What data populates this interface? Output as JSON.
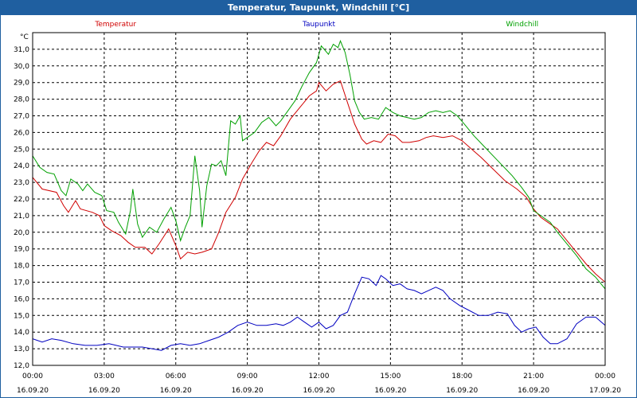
{
  "window": {
    "title": "Temperatur, Taupunkt, Windchill [°C]"
  },
  "chart_data": {
    "type": "line",
    "ylabel": "°C",
    "ylim": [
      12.0,
      32.0
    ],
    "y_ticks": [
      "12,0",
      "13,0",
      "14,0",
      "15,0",
      "16,0",
      "17,0",
      "18,0",
      "19,0",
      "20,0",
      "21,0",
      "22,0",
      "23,0",
      "24,0",
      "25,0",
      "26,0",
      "27,0",
      "28,0",
      "29,0",
      "30,0",
      "31,0"
    ],
    "x_unit": "hours",
    "xlim": [
      0,
      24
    ],
    "x_ticks": [
      {
        "time": "00:00",
        "date": "16.09.20"
      },
      {
        "time": "03:00",
        "date": "16.09.20"
      },
      {
        "time": "06:00",
        "date": "16.09.20"
      },
      {
        "time": "09:00",
        "date": "16.09.20"
      },
      {
        "time": "12:00",
        "date": "16.09.20"
      },
      {
        "time": "15:00",
        "date": "16.09.20"
      },
      {
        "time": "18:00",
        "date": "16.09.20"
      },
      {
        "time": "21:00",
        "date": "16.09.20"
      },
      {
        "time": "00:00",
        "date": "17.09.20"
      }
    ],
    "grid": true,
    "legend": "top",
    "series": [
      {
        "name": "Temperatur",
        "color": "#d00000",
        "points": [
          [
            0,
            23.3
          ],
          [
            0.4,
            22.6
          ],
          [
            1.0,
            22.4
          ],
          [
            1.3,
            21.6
          ],
          [
            1.5,
            21.2
          ],
          [
            1.8,
            21.9
          ],
          [
            2.0,
            21.4
          ],
          [
            2.5,
            21.2
          ],
          [
            2.8,
            21.0
          ],
          [
            3.0,
            20.4
          ],
          [
            3.3,
            20.1
          ],
          [
            3.7,
            19.8
          ],
          [
            4.0,
            19.4
          ],
          [
            4.3,
            19.1
          ],
          [
            4.7,
            19.1
          ],
          [
            5.0,
            18.7
          ],
          [
            5.3,
            19.3
          ],
          [
            5.7,
            20.2
          ],
          [
            6.0,
            19.2
          ],
          [
            6.2,
            18.4
          ],
          [
            6.5,
            18.8
          ],
          [
            6.8,
            18.7
          ],
          [
            7.1,
            18.8
          ],
          [
            7.5,
            19.0
          ],
          [
            7.8,
            20.0
          ],
          [
            8.1,
            21.2
          ],
          [
            8.5,
            22.1
          ],
          [
            8.8,
            23.2
          ],
          [
            9.2,
            24.2
          ],
          [
            9.5,
            24.9
          ],
          [
            9.8,
            25.4
          ],
          [
            10.1,
            25.2
          ],
          [
            10.4,
            25.8
          ],
          [
            10.8,
            26.8
          ],
          [
            11.2,
            27.5
          ],
          [
            11.6,
            28.2
          ],
          [
            11.9,
            28.5
          ],
          [
            12.0,
            29.0
          ],
          [
            12.3,
            28.5
          ],
          [
            12.6,
            28.9
          ],
          [
            12.9,
            29.1
          ],
          [
            13.2,
            27.8
          ],
          [
            13.5,
            26.5
          ],
          [
            13.8,
            25.6
          ],
          [
            14.0,
            25.3
          ],
          [
            14.3,
            25.5
          ],
          [
            14.6,
            25.4
          ],
          [
            14.9,
            25.9
          ],
          [
            15.2,
            25.8
          ],
          [
            15.5,
            25.4
          ],
          [
            15.8,
            25.4
          ],
          [
            16.2,
            25.5
          ],
          [
            16.5,
            25.7
          ],
          [
            16.8,
            25.8
          ],
          [
            17.2,
            25.7
          ],
          [
            17.6,
            25.8
          ],
          [
            18.0,
            25.5
          ],
          [
            18.4,
            25.0
          ],
          [
            18.8,
            24.5
          ],
          [
            19.3,
            23.8
          ],
          [
            19.8,
            23.1
          ],
          [
            20.3,
            22.6
          ],
          [
            20.7,
            22.1
          ],
          [
            21.0,
            21.4
          ],
          [
            21.3,
            20.9
          ],
          [
            21.6,
            20.6
          ],
          [
            22.0,
            20.2
          ],
          [
            22.4,
            19.5
          ],
          [
            22.8,
            18.8
          ],
          [
            23.2,
            18.1
          ],
          [
            23.6,
            17.5
          ],
          [
            24.0,
            17.0
          ]
        ]
      },
      {
        "name": "Taupunkt",
        "color": "#0000c0",
        "points": [
          [
            0,
            13.6
          ],
          [
            0.4,
            13.4
          ],
          [
            0.8,
            13.6
          ],
          [
            1.2,
            13.5
          ],
          [
            1.7,
            13.3
          ],
          [
            2.2,
            13.2
          ],
          [
            2.7,
            13.2
          ],
          [
            3.2,
            13.3
          ],
          [
            3.5,
            13.2
          ],
          [
            3.8,
            13.1
          ],
          [
            4.2,
            13.1
          ],
          [
            4.6,
            13.1
          ],
          [
            5.0,
            13.0
          ],
          [
            5.4,
            12.9
          ],
          [
            5.8,
            13.2
          ],
          [
            6.2,
            13.3
          ],
          [
            6.6,
            13.2
          ],
          [
            7.0,
            13.3
          ],
          [
            7.4,
            13.5
          ],
          [
            7.8,
            13.7
          ],
          [
            8.2,
            14.0
          ],
          [
            8.6,
            14.4
          ],
          [
            9.0,
            14.6
          ],
          [
            9.4,
            14.4
          ],
          [
            9.8,
            14.4
          ],
          [
            10.2,
            14.5
          ],
          [
            10.5,
            14.4
          ],
          [
            10.8,
            14.6
          ],
          [
            11.1,
            14.9
          ],
          [
            11.4,
            14.6
          ],
          [
            11.7,
            14.3
          ],
          [
            12.0,
            14.6
          ],
          [
            12.3,
            14.2
          ],
          [
            12.6,
            14.4
          ],
          [
            12.9,
            15.0
          ],
          [
            13.2,
            15.2
          ],
          [
            13.5,
            16.3
          ],
          [
            13.8,
            17.3
          ],
          [
            14.1,
            17.2
          ],
          [
            14.4,
            16.8
          ],
          [
            14.6,
            17.4
          ],
          [
            14.8,
            17.2
          ],
          [
            15.1,
            16.8
          ],
          [
            15.4,
            16.9
          ],
          [
            15.7,
            16.6
          ],
          [
            16.0,
            16.5
          ],
          [
            16.3,
            16.3
          ],
          [
            16.6,
            16.5
          ],
          [
            16.9,
            16.7
          ],
          [
            17.2,
            16.5
          ],
          [
            17.5,
            16.0
          ],
          [
            17.9,
            15.6
          ],
          [
            18.3,
            15.3
          ],
          [
            18.7,
            15.0
          ],
          [
            19.1,
            15.0
          ],
          [
            19.5,
            15.2
          ],
          [
            19.9,
            15.1
          ],
          [
            20.2,
            14.4
          ],
          [
            20.5,
            14.0
          ],
          [
            20.8,
            14.2
          ],
          [
            21.1,
            14.3
          ],
          [
            21.4,
            13.7
          ],
          [
            21.7,
            13.3
          ],
          [
            22.0,
            13.3
          ],
          [
            22.4,
            13.6
          ],
          [
            22.8,
            14.5
          ],
          [
            23.2,
            14.9
          ],
          [
            23.6,
            14.9
          ],
          [
            24.0,
            14.4
          ]
        ]
      },
      {
        "name": "Windchill",
        "color": "#00a000",
        "points": [
          [
            0,
            24.6
          ],
          [
            0.3,
            23.9
          ],
          [
            0.6,
            23.6
          ],
          [
            0.9,
            23.5
          ],
          [
            1.2,
            22.5
          ],
          [
            1.4,
            22.2
          ],
          [
            1.6,
            23.2
          ],
          [
            1.9,
            22.9
          ],
          [
            2.1,
            22.5
          ],
          [
            2.3,
            22.9
          ],
          [
            2.6,
            22.4
          ],
          [
            2.9,
            22.2
          ],
          [
            3.1,
            21.3
          ],
          [
            3.4,
            21.2
          ],
          [
            3.6,
            20.6
          ],
          [
            3.9,
            19.9
          ],
          [
            4.1,
            21.3
          ],
          [
            4.2,
            22.6
          ],
          [
            4.4,
            20.5
          ],
          [
            4.6,
            19.7
          ],
          [
            4.9,
            20.3
          ],
          [
            5.2,
            20.0
          ],
          [
            5.5,
            20.8
          ],
          [
            5.8,
            21.5
          ],
          [
            6.0,
            20.7
          ],
          [
            6.2,
            19.5
          ],
          [
            6.4,
            20.3
          ],
          [
            6.6,
            21.0
          ],
          [
            6.8,
            24.6
          ],
          [
            7.0,
            22.5
          ],
          [
            7.1,
            20.3
          ],
          [
            7.3,
            22.8
          ],
          [
            7.5,
            24.1
          ],
          [
            7.7,
            24.0
          ],
          [
            7.9,
            24.3
          ],
          [
            8.1,
            23.4
          ],
          [
            8.3,
            26.7
          ],
          [
            8.5,
            26.5
          ],
          [
            8.7,
            27.0
          ],
          [
            8.8,
            25.5
          ],
          [
            9.0,
            25.7
          ],
          [
            9.3,
            26.0
          ],
          [
            9.6,
            26.6
          ],
          [
            9.9,
            26.9
          ],
          [
            10.2,
            26.4
          ],
          [
            10.4,
            26.7
          ],
          [
            10.7,
            27.3
          ],
          [
            11.0,
            27.9
          ],
          [
            11.3,
            28.8
          ],
          [
            11.6,
            29.6
          ],
          [
            11.9,
            30.2
          ],
          [
            12.1,
            31.2
          ],
          [
            12.4,
            30.7
          ],
          [
            12.6,
            31.3
          ],
          [
            12.8,
            31.1
          ],
          [
            12.9,
            31.5
          ],
          [
            13.1,
            30.8
          ],
          [
            13.3,
            29.5
          ],
          [
            13.5,
            27.9
          ],
          [
            13.7,
            27.2
          ],
          [
            13.9,
            26.8
          ],
          [
            14.2,
            26.9
          ],
          [
            14.5,
            26.8
          ],
          [
            14.8,
            27.5
          ],
          [
            15.1,
            27.2
          ],
          [
            15.4,
            27.0
          ],
          [
            15.7,
            26.9
          ],
          [
            16.0,
            26.8
          ],
          [
            16.3,
            26.9
          ],
          [
            16.6,
            27.2
          ],
          [
            16.9,
            27.3
          ],
          [
            17.2,
            27.2
          ],
          [
            17.5,
            27.3
          ],
          [
            17.8,
            27.0
          ],
          [
            18.1,
            26.5
          ],
          [
            18.5,
            25.8
          ],
          [
            18.9,
            25.2
          ],
          [
            19.3,
            24.6
          ],
          [
            19.7,
            24.0
          ],
          [
            20.1,
            23.4
          ],
          [
            20.5,
            22.7
          ],
          [
            20.8,
            22.1
          ],
          [
            21.0,
            21.3
          ],
          [
            21.4,
            20.9
          ],
          [
            21.7,
            20.6
          ],
          [
            22.0,
            20.0
          ],
          [
            22.4,
            19.3
          ],
          [
            22.8,
            18.6
          ],
          [
            23.2,
            17.8
          ],
          [
            23.6,
            17.3
          ],
          [
            24.0,
            16.6
          ]
        ]
      }
    ]
  }
}
